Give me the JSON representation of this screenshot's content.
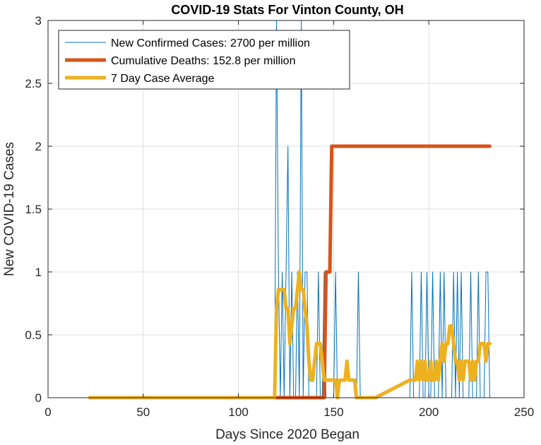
{
  "chart_data": {
    "type": "line",
    "title": "COVID-19 Stats For Vinton County, OH",
    "xlabel": "Days Since 2020 Began",
    "ylabel": "New COVID-19 Cases",
    "xlim": [
      0,
      250
    ],
    "ylim": [
      0,
      3
    ],
    "xticks": [
      0,
      50,
      100,
      150,
      200,
      250
    ],
    "yticks": [
      0,
      0.5,
      1,
      1.5,
      2,
      2.5,
      3
    ],
    "grid": true,
    "legend_position": "top-left",
    "series": [
      {
        "name": "New Confirmed Cases: 2700 per million",
        "color": "#0072BD",
        "style": "thin",
        "x": [
          22,
          119,
          120,
          121,
          122,
          123,
          124,
          125,
          126,
          127,
          128,
          129,
          130,
          131,
          132,
          133,
          134,
          135,
          136,
          137,
          138,
          139,
          140,
          141,
          142,
          143,
          144,
          145,
          146,
          147,
          148,
          149,
          150,
          151,
          152,
          153,
          154,
          155,
          156,
          157,
          158,
          159,
          160,
          161,
          162,
          163,
          164,
          165,
          166,
          167,
          168,
          169,
          170,
          171,
          172,
          190,
          191,
          192,
          193,
          194,
          195,
          196,
          197,
          198,
          199,
          200,
          201,
          202,
          203,
          204,
          205,
          206,
          207,
          208,
          209,
          210,
          211,
          212,
          213,
          214,
          215,
          216,
          217,
          218,
          219,
          220,
          221,
          222,
          223,
          224,
          225,
          226,
          227,
          228,
          229,
          230,
          231,
          232
        ],
        "y": [
          0,
          0,
          3,
          1,
          0,
          1,
          0,
          1,
          2,
          0,
          1,
          0,
          0,
          1,
          0,
          3,
          0,
          1,
          1,
          0,
          0,
          0,
          0,
          0,
          1,
          0,
          0,
          1,
          0,
          0,
          0,
          0,
          0,
          1,
          0,
          0,
          0,
          0,
          0,
          0,
          0,
          0,
          0,
          0,
          0,
          1,
          0,
          0,
          0,
          0,
          0,
          0,
          0,
          0,
          0,
          0,
          1,
          0,
          0,
          0,
          0,
          1,
          0,
          0,
          1,
          0,
          0,
          1,
          0,
          0,
          0,
          1,
          0,
          1,
          0,
          0,
          0,
          0,
          1,
          0,
          1,
          0,
          1,
          0,
          0,
          0,
          0,
          1,
          0,
          0,
          0,
          1,
          0,
          0,
          0,
          1,
          1,
          0
        ]
      },
      {
        "name": "Cumulative Deaths: 152.8 per million",
        "color": "#D95319",
        "style": "thick",
        "x": [
          22,
          145,
          146,
          147,
          148,
          149,
          232
        ],
        "y": [
          0,
          0,
          1,
          1,
          1,
          2,
          2
        ]
      },
      {
        "name": "7 Day Case Average",
        "color": "#EDB120",
        "style": "thick",
        "x": [
          22,
          119,
          120,
          121,
          122,
          123,
          124,
          125,
          126,
          127,
          128,
          129,
          130,
          131,
          132,
          133,
          134,
          135,
          136,
          137,
          138,
          139,
          140,
          141,
          142,
          143,
          144,
          145,
          146,
          147,
          148,
          149,
          150,
          151,
          152,
          153,
          154,
          155,
          156,
          157,
          158,
          159,
          160,
          161,
          162,
          163,
          164,
          165,
          166,
          167,
          168,
          169,
          170,
          171,
          172,
          190,
          191,
          192,
          193,
          194,
          195,
          196,
          197,
          198,
          199,
          200,
          201,
          202,
          203,
          204,
          205,
          206,
          207,
          208,
          209,
          210,
          211,
          212,
          213,
          214,
          215,
          216,
          217,
          218,
          219,
          220,
          221,
          222,
          223,
          224,
          225,
          226,
          227,
          228,
          229,
          230,
          231,
          232
        ],
        "y": [
          0,
          0,
          0.71,
          0.86,
          0.86,
          0.86,
          0.86,
          0.71,
          0.71,
          0.43,
          0.57,
          0.71,
          0.71,
          0.86,
          1.0,
          0.86,
          0.86,
          0.71,
          0.57,
          0.29,
          0.14,
          0.14,
          0.29,
          0.43,
          0.43,
          0.43,
          0.29,
          0.14,
          0.14,
          0.14,
          0.14,
          0.14,
          0.14,
          0.14,
          0.0,
          0.14,
          0.14,
          0.14,
          0.14,
          0.29,
          0.14,
          0.14,
          0.14,
          0.14,
          0.0,
          0.0,
          0.0,
          0.0,
          0.0,
          0.0,
          0.0,
          0.0,
          0.0,
          0.0,
          0.0,
          0.14,
          0.14,
          0.14,
          0.14,
          0.29,
          0.14,
          0.29,
          0.14,
          0.29,
          0.14,
          0.14,
          0.29,
          0.14,
          0.14,
          0.29,
          0.14,
          0.29,
          0.43,
          0.29,
          0.43,
          0.43,
          0.57,
          0.57,
          0.43,
          0.29,
          0.29,
          0.14,
          0.29,
          0.14,
          0.29,
          0.29,
          0.29,
          0.14,
          0.29,
          0.14,
          0.29,
          0.29,
          0.43,
          0.43,
          0.43,
          0.29,
          0.43,
          0.43
        ]
      }
    ]
  }
}
